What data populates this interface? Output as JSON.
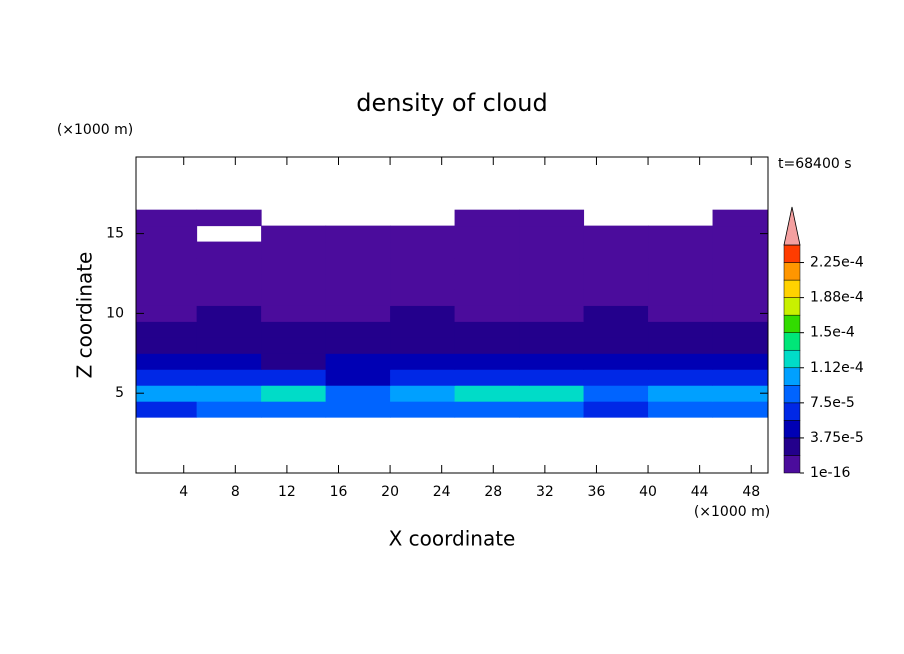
{
  "chart_data": {
    "type": "contour",
    "title": "density of cloud",
    "x_label": "X coordinate",
    "y_label": "Z coordinate",
    "x_unit": "(×1000 m)",
    "y_unit": "(×1000 m)",
    "annotation": "t=68400 s",
    "xlim": [
      0.3,
      49.3
    ],
    "ylim": [
      0,
      19.8
    ],
    "xticks": [
      4,
      8,
      12,
      16,
      20,
      24,
      28,
      32,
      36,
      40,
      44,
      48
    ],
    "yticks": [
      5,
      10,
      15
    ],
    "x": [
      2.5,
      7.5,
      12.5,
      17.5,
      22.5,
      27.5,
      32.5,
      37.5,
      42.5,
      47.5
    ],
    "y": [
      4,
      5,
      6,
      7,
      8,
      9,
      10,
      11,
      12,
      13,
      14,
      15,
      16
    ],
    "z": [
      [
        7e-05,
        8e-05,
        9e-05,
        9e-05,
        8e-05,
        9e-05,
        9e-05,
        7e-05,
        9e-05,
        8e-05
      ],
      [
        0.0001,
        0.00011,
        0.00013,
        9e-05,
        0.00011,
        0.00012,
        0.00012,
        8e-05,
        0.00011,
        0.00011
      ],
      [
        6e-05,
        7e-05,
        6e-05,
        5e-05,
        6e-05,
        6e-05,
        7e-05,
        6e-05,
        7e-05,
        6e-05
      ],
      [
        4e-05,
        5e-05,
        3.5e-05,
        4e-05,
        4e-05,
        4.5e-05,
        4e-05,
        4e-05,
        5e-05,
        4e-05
      ],
      [
        3e-05,
        2.5e-05,
        2.5e-05,
        3e-05,
        2.5e-05,
        3e-05,
        2.5e-05,
        3e-05,
        2.5e-05,
        3e-05
      ],
      [
        2e-05,
        2e-05,
        2.5e-05,
        2e-05,
        2e-05,
        2e-05,
        2e-05,
        2e-05,
        2e-05,
        2e-05
      ],
      [
        1.5e-05,
        2e-05,
        1.5e-05,
        1.5e-05,
        2e-05,
        1.5e-05,
        1e-05,
        2e-05,
        1.5e-05,
        1.5e-05
      ],
      [
        1e-05,
        1.5e-05,
        1e-05,
        1e-05,
        1e-05,
        1e-05,
        1e-05,
        1e-05,
        1e-05,
        1e-05
      ],
      [
        1e-05,
        1e-05,
        1e-05,
        5e-06,
        1e-05,
        1e-05,
        1e-05,
        1e-05,
        1e-05,
        5e-06
      ],
      [
        5e-06,
        5e-06,
        5e-06,
        5e-06,
        5e-06,
        5e-06,
        5e-06,
        5e-06,
        5e-06,
        5e-06
      ],
      [
        5e-06,
        5e-06,
        5e-06,
        5e-06,
        5e-06,
        5e-06,
        5e-06,
        5e-06,
        5e-06,
        5e-06
      ],
      [
        5e-06,
        null,
        5e-06,
        5e-06,
        5e-06,
        5e-06,
        5e-06,
        5e-06,
        5e-06,
        5e-06
      ],
      [
        5e-06,
        5e-06,
        null,
        null,
        null,
        5e-06,
        5e-06,
        null,
        null,
        5e-06
      ]
    ],
    "levels": [
      1e-16,
      1.875e-05,
      3.75e-05,
      5.625e-05,
      7.5e-05,
      9.375e-05,
      0.0001125,
      0.00013125,
      0.00015,
      0.00016875,
      0.0001875,
      0.00020625,
      0.000225
    ],
    "colors": [
      "#4b0c9c",
      "#23008c",
      "#0000b4",
      "#0028e6",
      "#0064ff",
      "#00a0ff",
      "#00dcc8",
      "#00e678",
      "#32dc00",
      "#c8f000",
      "#ffd200",
      "#ff9600",
      "#ff3c00"
    ],
    "over_color": "#f4a0a0",
    "clim": [
      1e-16,
      0.00024375
    ],
    "cticks": [
      {
        "value": 1e-16,
        "label": "1e-16"
      },
      {
        "value": 3.75e-05,
        "label": "3.75e-5"
      },
      {
        "value": 7.5e-05,
        "label": "7.5e-5"
      },
      {
        "value": 0.0001125,
        "label": "1.12e-4"
      },
      {
        "value": 0.00015,
        "label": "1.5e-4"
      },
      {
        "value": 0.0001875,
        "label": "1.88e-4"
      },
      {
        "value": 0.000225,
        "label": "2.25e-4"
      }
    ]
  }
}
